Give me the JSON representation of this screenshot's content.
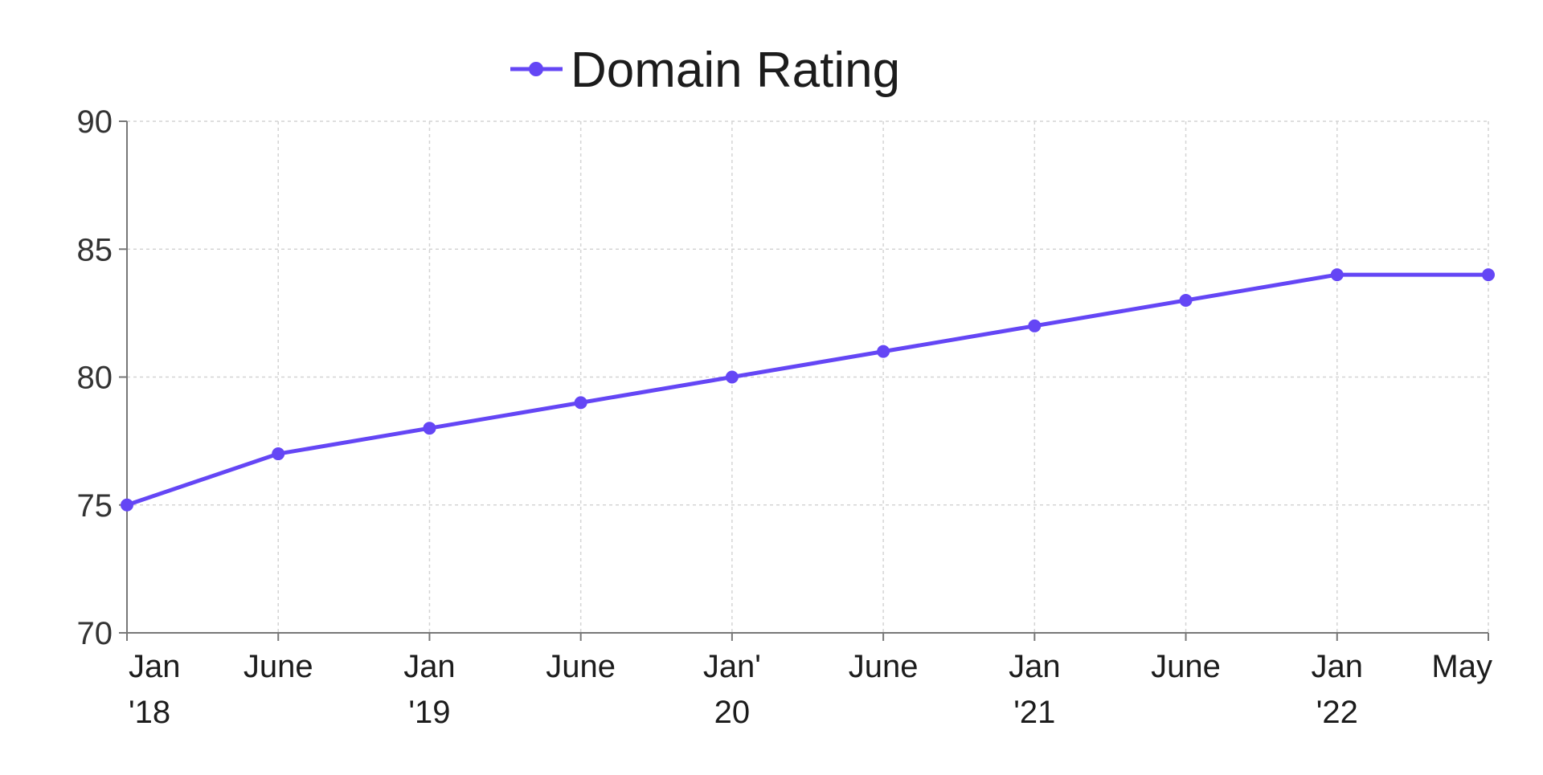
{
  "chart_data": {
    "type": "line",
    "series": [
      {
        "name": "Domain Rating",
        "color": "#6446f5",
        "values": [
          75,
          77,
          78,
          79,
          80,
          81,
          82,
          83,
          84,
          84
        ]
      }
    ],
    "categories": [
      "Jan '18",
      "June",
      "Jan '19",
      "June",
      "Jan' 20",
      "June",
      "Jan '21",
      "June",
      "Jan '22",
      "May"
    ],
    "x_tick_labels": [
      [
        "Jan",
        "'18"
      ],
      [
        "June"
      ],
      [
        "Jan",
        "'19"
      ],
      [
        "June"
      ],
      [
        "Jan'",
        "20"
      ],
      [
        "June"
      ],
      [
        "Jan",
        "'21"
      ],
      [
        "June"
      ],
      [
        "Jan",
        "'22"
      ],
      [
        "May"
      ]
    ],
    "y_ticks": [
      70,
      75,
      80,
      85,
      90
    ],
    "ylim": [
      70,
      90
    ],
    "grid": true,
    "legend_position": "top-center",
    "title": "",
    "xlabel": "",
    "ylabel": ""
  }
}
